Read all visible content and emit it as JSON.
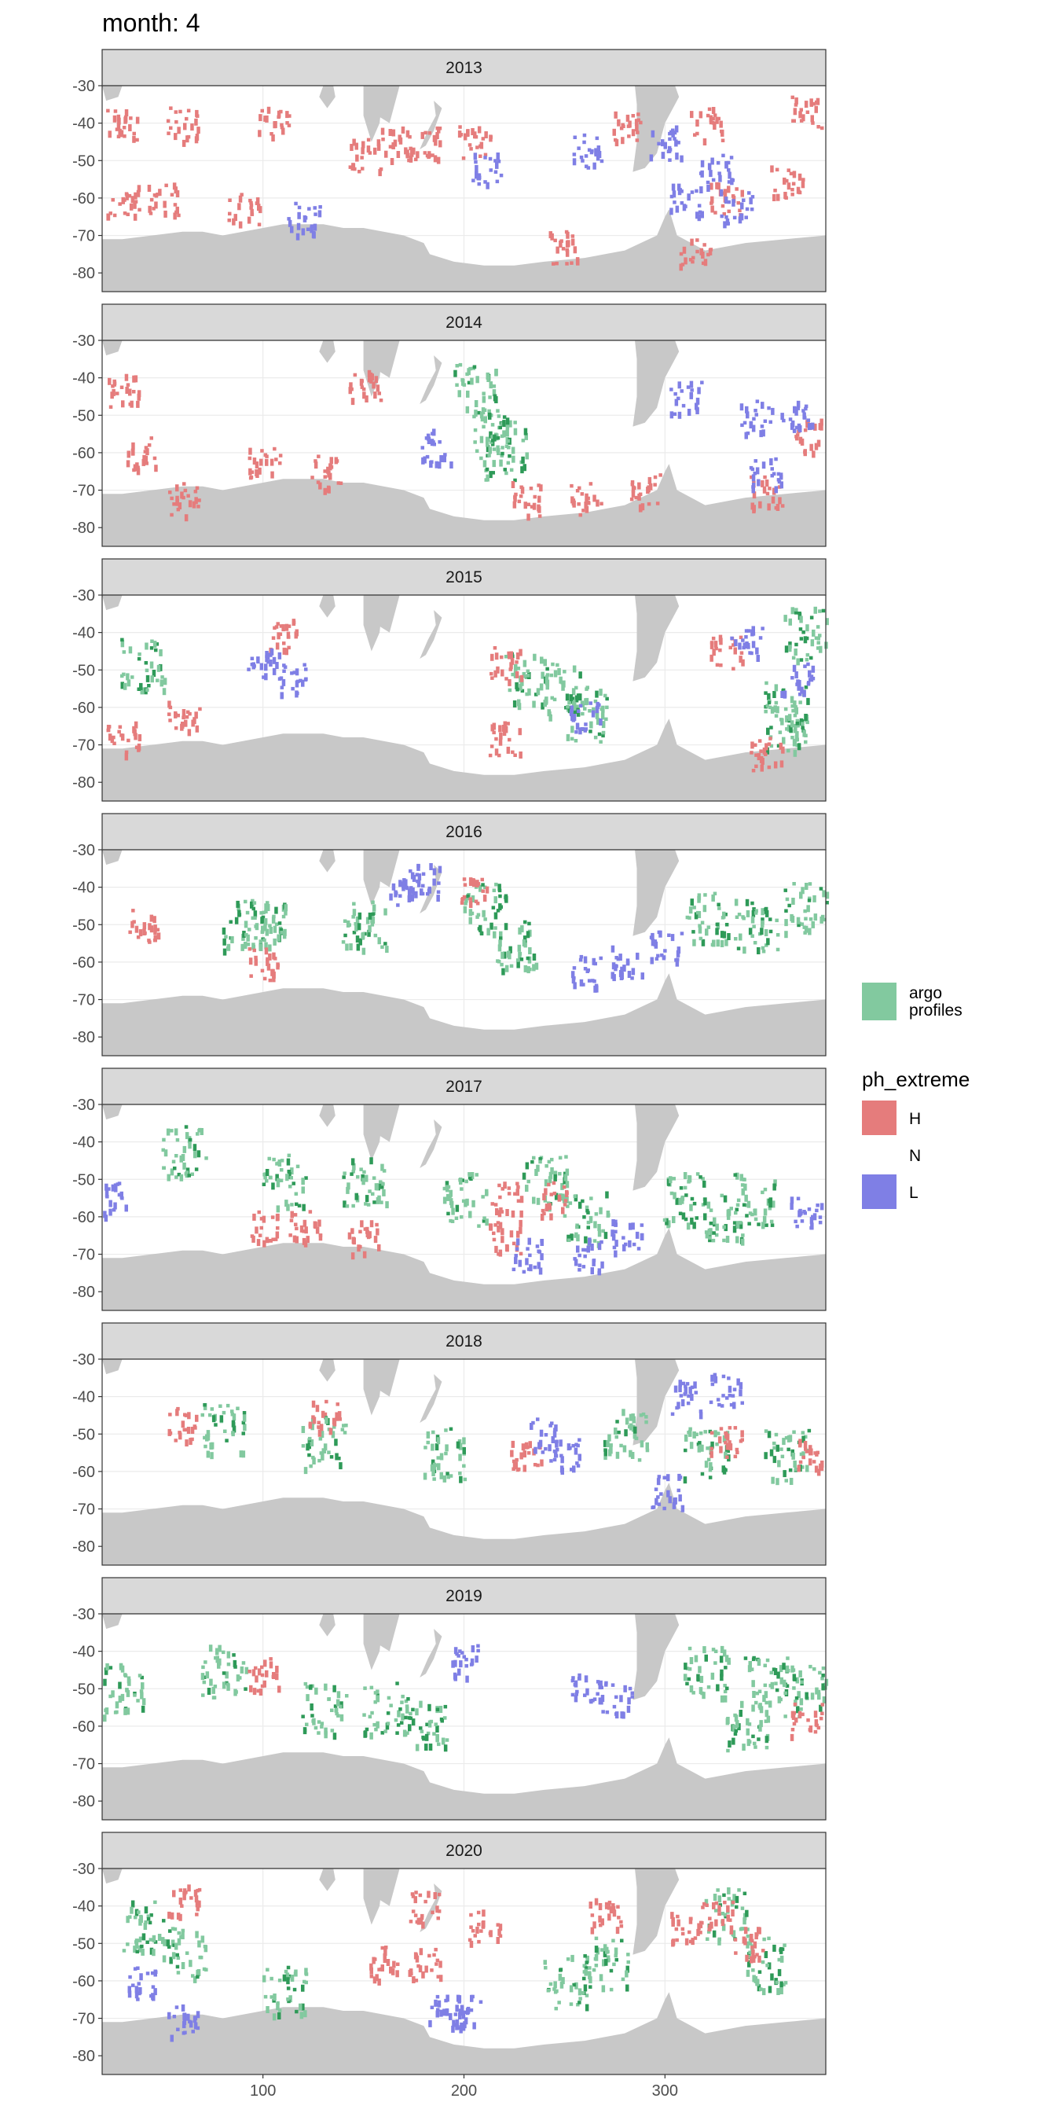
{
  "chart_data": {
    "type": "heatmap",
    "title": "month: 4",
    "xlabel": "",
    "ylabel": "",
    "xlim": [
      20,
      380
    ],
    "ylim": [
      -85,
      -30
    ],
    "x_ticks": [
      100,
      200,
      300
    ],
    "y_ticks": [
      -30,
      -40,
      -50,
      -60,
      -70,
      -80
    ],
    "grid": true,
    "facets": [
      "2013",
      "2014",
      "2015",
      "2016",
      "2017",
      "2018",
      "2019",
      "2020"
    ],
    "legend_position": "right",
    "legends": [
      {
        "title": "",
        "entries": [
          {
            "label": "argo\nprofiles",
            "color": "#82c99f"
          }
        ]
      },
      {
        "title": "ph_extreme",
        "entries": [
          {
            "label": "H",
            "color": "#e57c7c"
          },
          {
            "label": "N",
            "color": "none"
          },
          {
            "label": "L",
            "color": "#7f7fe5"
          }
        ]
      }
    ],
    "colors": {
      "H": "#e57c7c",
      "L": "#7f7fe5",
      "argo": "#82c99f",
      "argo_dark": "#2e9a58",
      "land": "#c8c8c8"
    },
    "series": [
      {
        "facet": "2013",
        "H_clusters": [
          [
            30,
            -40
          ],
          [
            60,
            -40
          ],
          [
            105,
            -40
          ],
          [
            150,
            -48
          ],
          [
            165,
            -45
          ],
          [
            180,
            -45
          ],
          [
            205,
            -45
          ],
          [
            280,
            -40
          ],
          [
            320,
            -40
          ],
          [
            370,
            -37
          ],
          [
            360,
            -55
          ],
          [
            330,
            -60
          ],
          [
            315,
            -75
          ],
          [
            30,
            -60
          ],
          [
            50,
            -60
          ],
          [
            90,
            -63
          ],
          [
            250,
            -73
          ]
        ],
        "L_clusters": [
          [
            260,
            -47
          ],
          [
            300,
            -45
          ],
          [
            325,
            -52
          ],
          [
            310,
            -60
          ],
          [
            335,
            -62
          ],
          [
            210,
            -52
          ],
          [
            120,
            -65
          ]
        ],
        "argo_clusters": []
      },
      {
        "facet": "2014",
        "H_clusters": [
          [
            30,
            -43
          ],
          [
            40,
            -60
          ],
          [
            100,
            -62
          ],
          [
            130,
            -65
          ],
          [
            150,
            -42
          ],
          [
            230,
            -72
          ],
          [
            260,
            -72
          ],
          [
            290,
            -70
          ],
          [
            370,
            -55
          ],
          [
            350,
            -70
          ],
          [
            60,
            -72
          ]
        ],
        "L_clusters": [
          [
            185,
            -58
          ],
          [
            310,
            -45
          ],
          [
            345,
            -50
          ],
          [
            365,
            -50
          ],
          [
            350,
            -65
          ]
        ],
        "argo_clusters": [
          [
            205,
            -43
          ],
          [
            215,
            -55
          ],
          [
            220,
            -60
          ]
        ]
      },
      {
        "facet": "2015",
        "H_clusters": [
          [
            30,
            -68
          ],
          [
            60,
            -62
          ],
          [
            110,
            -40
          ],
          [
            220,
            -48
          ],
          [
            330,
            -45
          ],
          [
            350,
            -72
          ],
          [
            220,
            -68
          ]
        ],
        "L_clusters": [
          [
            100,
            -48
          ],
          [
            115,
            -52
          ],
          [
            340,
            -42
          ],
          [
            365,
            -52
          ],
          [
            260,
            -62
          ]
        ],
        "argo_clusters": [
          [
            40,
            -48
          ],
          [
            230,
            -52
          ],
          [
            250,
            -55
          ],
          [
            260,
            -62
          ],
          [
            370,
            -40
          ],
          [
            360,
            -60
          ],
          [
            360,
            -65
          ]
        ]
      },
      {
        "facet": "2016",
        "H_clusters": [
          [
            205,
            -40
          ],
          [
            40,
            -50
          ],
          [
            100,
            -60
          ]
        ],
        "L_clusters": [
          [
            170,
            -40
          ],
          [
            180,
            -38
          ],
          [
            260,
            -62
          ],
          [
            280,
            -60
          ],
          [
            300,
            -56
          ]
        ],
        "argo_clusters": [
          [
            90,
            -50
          ],
          [
            100,
            -50
          ],
          [
            150,
            -50
          ],
          [
            210,
            -45
          ],
          [
            225,
            -55
          ],
          [
            320,
            -48
          ],
          [
            345,
            -50
          ],
          [
            370,
            -45
          ]
        ]
      },
      {
        "facet": "2017",
        "H_clusters": [
          [
            100,
            -62
          ],
          [
            120,
            -62
          ],
          [
            150,
            -65
          ],
          [
            220,
            -55
          ],
          [
            245,
            -55
          ],
          [
            220,
            -65
          ]
        ],
        "L_clusters": [
          [
            25,
            -55
          ],
          [
            230,
            -70
          ],
          [
            260,
            -70
          ],
          [
            280,
            -65
          ],
          [
            370,
            -58
          ]
        ],
        "argo_clusters": [
          [
            60,
            -42
          ],
          [
            110,
            -50
          ],
          [
            150,
            -50
          ],
          [
            200,
            -55
          ],
          [
            240,
            -50
          ],
          [
            260,
            -60
          ],
          [
            310,
            -55
          ],
          [
            330,
            -60
          ],
          [
            345,
            -55
          ]
        ]
      },
      {
        "facet": "2018",
        "H_clusters": [
          [
            60,
            -47
          ],
          [
            130,
            -45
          ],
          [
            230,
            -55
          ],
          [
            330,
            -52
          ],
          [
            370,
            -55
          ]
        ],
        "L_clusters": [
          [
            240,
            -50
          ],
          [
            250,
            -55
          ],
          [
            310,
            -40
          ],
          [
            330,
            -38
          ],
          [
            300,
            -65
          ]
        ],
        "argo_clusters": [
          [
            80,
            -48
          ],
          [
            130,
            -52
          ],
          [
            190,
            -55
          ],
          [
            280,
            -50
          ],
          [
            320,
            -55
          ],
          [
            360,
            -55
          ]
        ]
      },
      {
        "facet": "2019",
        "H_clusters": [
          [
            100,
            -46
          ],
          [
            370,
            -58
          ]
        ],
        "L_clusters": [
          [
            200,
            -42
          ],
          [
            260,
            -50
          ],
          [
            275,
            -52
          ]
        ],
        "argo_clusters": [
          [
            30,
            -50
          ],
          [
            80,
            -45
          ],
          [
            130,
            -55
          ],
          [
            160,
            -55
          ],
          [
            180,
            -58
          ],
          [
            320,
            -45
          ],
          [
            350,
            -48
          ],
          [
            340,
            -60
          ],
          [
            370,
            -50
          ]
        ]
      },
      {
        "facet": "2020",
        "H_clusters": [
          [
            60,
            -38
          ],
          [
            160,
            -55
          ],
          [
            180,
            -55
          ],
          [
            180,
            -40
          ],
          [
            210,
            -45
          ],
          [
            270,
            -42
          ],
          [
            310,
            -45
          ],
          [
            325,
            -43
          ],
          [
            340,
            -50
          ]
        ],
        "L_clusters": [
          [
            40,
            -60
          ],
          [
            200,
            -68
          ],
          [
            190,
            -68
          ],
          [
            60,
            -70
          ]
        ],
        "argo_clusters": [
          [
            40,
            -45
          ],
          [
            60,
            -52
          ],
          [
            110,
            -62
          ],
          [
            250,
            -60
          ],
          [
            270,
            -55
          ],
          [
            330,
            -42
          ],
          [
            350,
            -55
          ]
        ]
      }
    ]
  }
}
